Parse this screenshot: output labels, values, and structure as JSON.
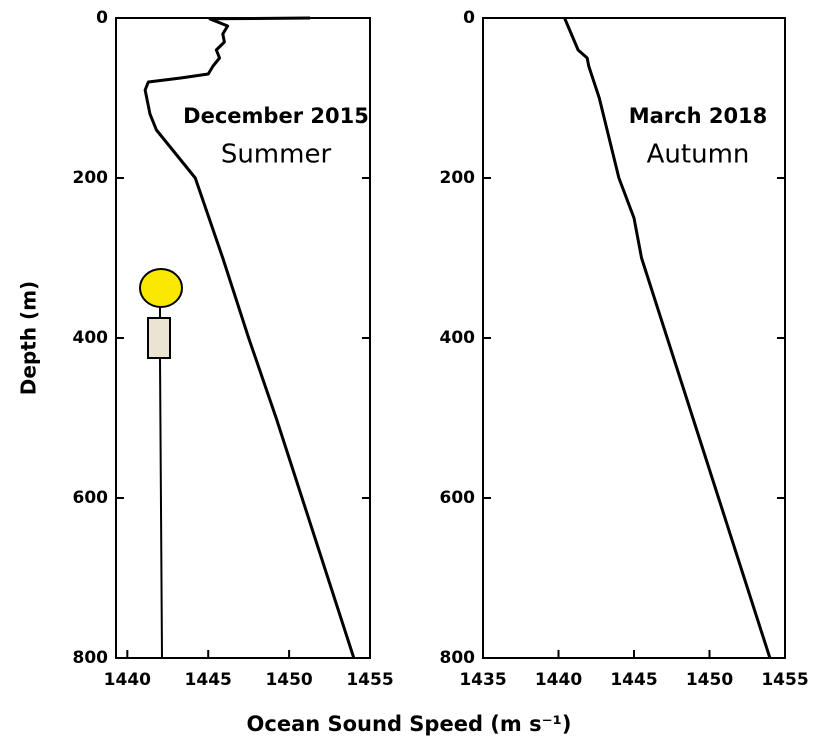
{
  "chart_data": [
    {
      "type": "line",
      "title": "December 2015",
      "subtitle": "Summer",
      "ylabel": "Depth (m)",
      "xlabel": "Ocean Sound Speed (m s⁻¹)",
      "xlim": [
        1439.3,
        1455
      ],
      "xticks": [
        1440,
        1445,
        1450,
        1455
      ],
      "ylim": [
        0,
        800
      ],
      "yticks": [
        0,
        200,
        400,
        600,
        800
      ],
      "y_inverted": true,
      "series": [
        {
          "color": "#000000",
          "x": [
            1451.3,
            1445.1,
            1446.2,
            1445.9,
            1446.0,
            1445.5,
            1445.7,
            1445.3,
            1445.0,
            1443.3,
            1441.3,
            1441.1,
            1441.2,
            1441.4,
            1441.8,
            1444.2,
            1445.9,
            1447.5,
            1449.2,
            1450.8,
            1452.4,
            1454.0
          ],
          "y": [
            0,
            1,
            10,
            20,
            30,
            40,
            50,
            60,
            70,
            75,
            80,
            90,
            100,
            120,
            140,
            200,
            300,
            400,
            500,
            600,
            700,
            800
          ]
        }
      ]
    },
    {
      "type": "line",
      "title": "March 2018",
      "subtitle": "Autumn",
      "xlim": [
        1435,
        1455
      ],
      "xticks": [
        1435,
        1440,
        1445,
        1450,
        1455
      ],
      "ylim": [
        0,
        800
      ],
      "yticks": [
        0,
        200,
        400,
        600,
        800
      ],
      "y_inverted": true,
      "series": [
        {
          "color": "#000000",
          "x": [
            1440.4,
            1441.3,
            1441.9,
            1442.0,
            1442.7,
            1444.0,
            1445.0,
            1445.5,
            1447.2,
            1448.9,
            1450.6,
            1452.3,
            1454.0
          ],
          "y": [
            0,
            40,
            50,
            60,
            100,
            200,
            250,
            300,
            400,
            500,
            600,
            700,
            800
          ]
        }
      ]
    }
  ]
}
